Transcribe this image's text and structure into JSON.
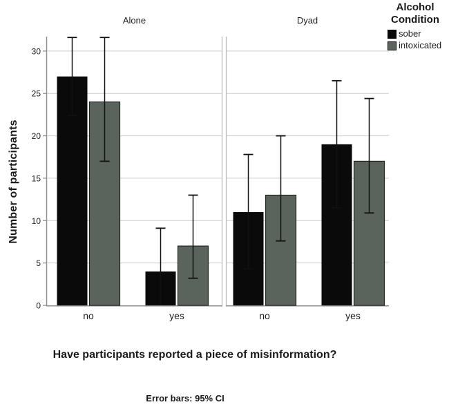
{
  "chart_data": {
    "type": "bar",
    "ylabel": "Number of participants",
    "xlabel": "Have participants reported a piece of misinformation?",
    "caption": "Error bars: 95% CI",
    "legend_title_lines": [
      "Alcohol",
      "Condition"
    ],
    "legend_position": "top-right",
    "grid": "horizontal",
    "yticks": [
      0,
      5,
      10,
      15,
      20,
      25,
      30
    ],
    "ylim": [
      0,
      31.7
    ],
    "categories": [
      "no",
      "yes"
    ],
    "facets": [
      {
        "label": "Alone",
        "series": [
          {
            "name": "sober",
            "color": "#0a0a0a",
            "values": [
              27,
              4
            ],
            "ci_low": [
              22.4,
              -1.1
            ],
            "ci_high": [
              31.6,
              9.1
            ]
          },
          {
            "name": "intoxicated",
            "color": "#5b635d",
            "values": [
              24,
              7
            ],
            "ci_low": [
              17.0,
              3.2
            ],
            "ci_high": [
              31.6,
              13.0
            ]
          }
        ]
      },
      {
        "label": "Dyad",
        "series": [
          {
            "name": "sober",
            "color": "#0a0a0a",
            "values": [
              11,
              19
            ],
            "ci_low": [
              4.3,
              11.5
            ],
            "ci_high": [
              17.8,
              26.5
            ]
          },
          {
            "name": "intoxicated",
            "color": "#5b635d",
            "values": [
              13,
              17
            ],
            "ci_low": [
              7.6,
              10.9
            ],
            "ci_high": [
              20.0,
              24.4
            ]
          }
        ]
      }
    ]
  }
}
